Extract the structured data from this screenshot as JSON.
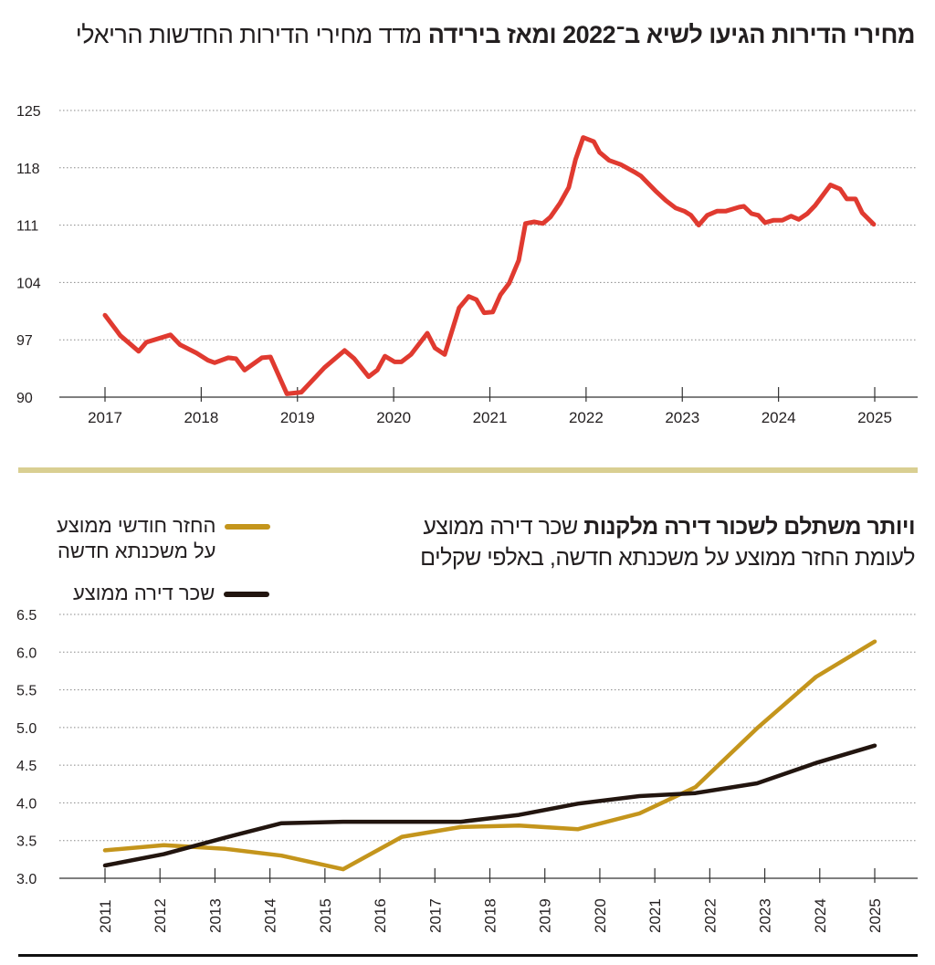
{
  "chart_data": [
    {
      "type": "line",
      "title": "מחירי הדירות הגיעו לשיא ב־2022 ומאז בירידה",
      "subtitle": "מדד מחירי הדירות החדשות הריאלי",
      "ylim": [
        90,
        125
      ],
      "yticks": [
        90,
        97,
        104,
        111,
        118,
        125
      ],
      "xticks": [
        "2017",
        "2018",
        "2019",
        "2020",
        "2021",
        "2022",
        "2023",
        "2024",
        "2025"
      ],
      "grid": "horizontal dotted",
      "color": "#e03a30",
      "series": [
        {
          "x": [
            2017.0,
            2017.16,
            2017.35,
            2017.43,
            2017.68,
            2017.78,
            2017.95,
            2018.07,
            2018.14,
            2018.28,
            2018.36,
            2018.45,
            2018.63,
            2018.72,
            2018.89,
            2019.04,
            2019.28,
            2019.49,
            2019.59,
            2019.74,
            2019.83,
            2019.91,
            2020.01,
            2020.08,
            2020.18,
            2020.35,
            2020.43,
            2020.53,
            2020.68,
            2020.78,
            2020.86,
            2020.94,
            2021.03,
            2021.11,
            2021.2,
            2021.3,
            2021.37,
            2021.46,
            2021.55,
            2021.63,
            2021.73,
            2021.82,
            2021.89,
            2021.97,
            2022.08,
            2022.14,
            2022.24,
            2022.36,
            2022.5,
            2022.57,
            2022.72,
            2022.83,
            2022.93,
            2023.02,
            2023.09,
            2023.17,
            2023.26,
            2023.36,
            2023.45,
            2023.59,
            2023.64,
            2023.72,
            2023.79,
            2023.86,
            2023.95,
            2024.04,
            2024.13,
            2024.21,
            2024.3,
            2024.38,
            2024.54,
            2024.64,
            2024.71,
            2024.8,
            2024.87,
            2024.99
          ],
          "values": [
            100.0,
            97.5,
            95.6,
            96.7,
            97.6,
            96.4,
            95.4,
            94.5,
            94.2,
            94.8,
            94.7,
            93.3,
            94.8,
            94.9,
            90.4,
            90.6,
            93.6,
            95.7,
            94.7,
            92.5,
            93.3,
            95.0,
            94.3,
            94.3,
            95.2,
            97.8,
            96.0,
            95.2,
            100.9,
            102.3,
            101.9,
            100.3,
            100.4,
            102.5,
            103.9,
            106.7,
            111.2,
            111.4,
            111.2,
            112.0,
            113.7,
            115.6,
            119.0,
            121.7,
            121.2,
            119.9,
            118.9,
            118.4,
            117.5,
            117.0,
            115.2,
            114.0,
            113.1,
            112.7,
            112.2,
            111.0,
            112.2,
            112.7,
            112.7,
            113.2,
            113.3,
            112.4,
            112.2,
            111.3,
            111.6,
            111.6,
            112.1,
            111.7,
            112.4,
            113.4,
            115.9,
            115.4,
            114.2,
            114.2,
            112.5,
            111.1
          ]
        }
      ]
    },
    {
      "type": "line",
      "title": "ויותר משתלם לשכור דירה מלקנות",
      "subtitle": "שכר דירה ממוצע לעומת החזר ממוצע על משכנתא חדשה, באלפי שקלים",
      "ylim": [
        3.0,
        6.5
      ],
      "yticks": [
        "3.0",
        "3.5",
        "4.0",
        "4.5",
        "5.0",
        "5.5",
        "6.0",
        "6.5"
      ],
      "xticks": [
        "2011",
        "2012",
        "2013",
        "2014",
        "2015",
        "2016",
        "2017",
        "2018",
        "2019",
        "2020",
        "2021",
        "2022",
        "2023",
        "2024",
        "2025"
      ],
      "grid": "horizontal dotted",
      "legend": "top-left",
      "x": [
        2011,
        2012.07,
        2013.19,
        2014.21,
        2015.33,
        2016.4,
        2017.47,
        2018.53,
        2019.6,
        2020.72,
        2021.74,
        2022.86,
        2023.93,
        2025
      ],
      "series": [
        {
          "name": "החזר חודשי ממוצע על משכנתא חדשה",
          "name_lines": [
            "החזר חודשי ממוצע",
            "על משכנתא חדשה"
          ],
          "color": "#c4951c",
          "values": [
            3.37,
            3.44,
            3.39,
            3.3,
            3.12,
            3.55,
            3.68,
            3.7,
            3.65,
            3.86,
            4.21,
            4.99,
            5.67,
            6.14
          ]
        },
        {
          "name": "שכר דירה ממוצע",
          "name_lines": [
            "שכר דירה ממוצע"
          ],
          "color": "#22150f",
          "values": [
            3.17,
            3.32,
            3.54,
            3.73,
            3.75,
            3.75,
            3.75,
            3.84,
            3.99,
            4.09,
            4.13,
            4.26,
            4.53,
            4.76
          ]
        }
      ]
    }
  ]
}
